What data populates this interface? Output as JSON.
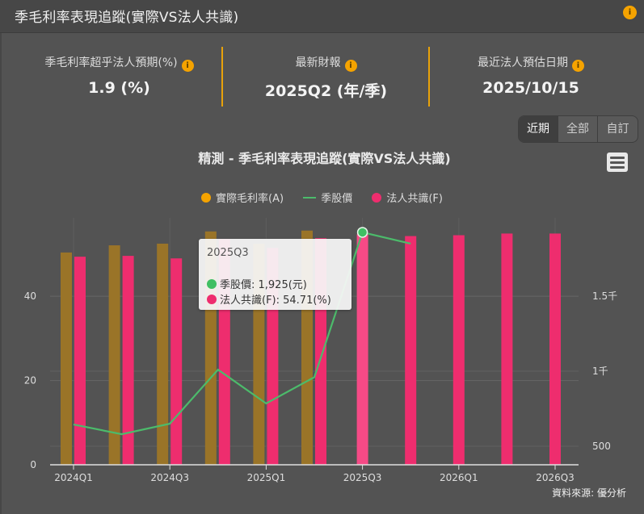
{
  "header": {
    "title": "季毛利率表現追蹤(實際VS法人共識)",
    "info_icon": "info-icon"
  },
  "stats": [
    {
      "label": "季毛利率超乎法人預期(%)",
      "value": "1.9 (%)"
    },
    {
      "label": "最新財報",
      "value": "2025Q2 (年/季)"
    },
    {
      "label": "最近法人預估日期",
      "value": "2025/10/15"
    }
  ],
  "range_buttons": [
    {
      "label": "近期",
      "active": true
    },
    {
      "label": "全部",
      "active": false
    },
    {
      "label": "自訂",
      "active": false
    }
  ],
  "menu_icon": "hamburger-menu-icon",
  "colors": {
    "actual": "#f5a300",
    "actual_bar": "#9a7428",
    "price_line": "#4cbb6b",
    "consensus": "#ee2d6e",
    "divider": "#e8a20a",
    "background": "#535353"
  },
  "tooltip": {
    "title": "2025Q3",
    "rows": [
      {
        "label": "季股價: 1,925(元)",
        "color": "#3fbf63"
      },
      {
        "label": "法人共識(F): 54.71(%)",
        "color": "#ee2d6e"
      }
    ]
  },
  "source": "資料來源: 優分析",
  "chart_data": {
    "type": "bar",
    "title": "精測 - 季毛利率表現追蹤(實際VS法人共識)",
    "categories": [
      "2024Q1",
      "2024Q2",
      "2024Q3",
      "2024Q4",
      "2025Q1",
      "2025Q2",
      "2025Q3",
      "2025Q4",
      "2026Q1",
      "2026Q2",
      "2026Q3"
    ],
    "x_tick_labels": [
      "2024Q1",
      "2024Q3",
      "2025Q1",
      "2025Q3",
      "2026Q1",
      "2026Q3"
    ],
    "series": [
      {
        "name": "實際毛利率(A)",
        "type": "bar",
        "axis": "left",
        "values": [
          50.4,
          52.1,
          52.5,
          55.4,
          52.5,
          55.6,
          null,
          null,
          null,
          null,
          null
        ]
      },
      {
        "name": "季股價",
        "type": "line",
        "axis": "right",
        "values": [
          645,
          580,
          650,
          1010,
          785,
          960,
          1925,
          1850,
          null,
          null,
          null
        ]
      },
      {
        "name": "法人共識(F)",
        "type": "bar",
        "axis": "left",
        "values": [
          49.4,
          49.6,
          49.0,
          53.6,
          51.5,
          53.8,
          54.71,
          54.3,
          54.5,
          54.9,
          54.9
        ]
      }
    ],
    "y_left": {
      "label": "",
      "ticks": [
        "0",
        "20",
        "40"
      ],
      "range": [
        0,
        60
      ]
    },
    "y_right": {
      "label": "",
      "ticks": [
        "500",
        "1千",
        "1.5千"
      ],
      "range": [
        380,
        2050
      ]
    },
    "legend": [
      "實際毛利率(A)",
      "季股價",
      "法人共識(F)"
    ],
    "legend_position": "top",
    "grid": true,
    "highlighted_point": {
      "category": "2025Q3",
      "price": 1925,
      "consensus": 54.71
    }
  }
}
